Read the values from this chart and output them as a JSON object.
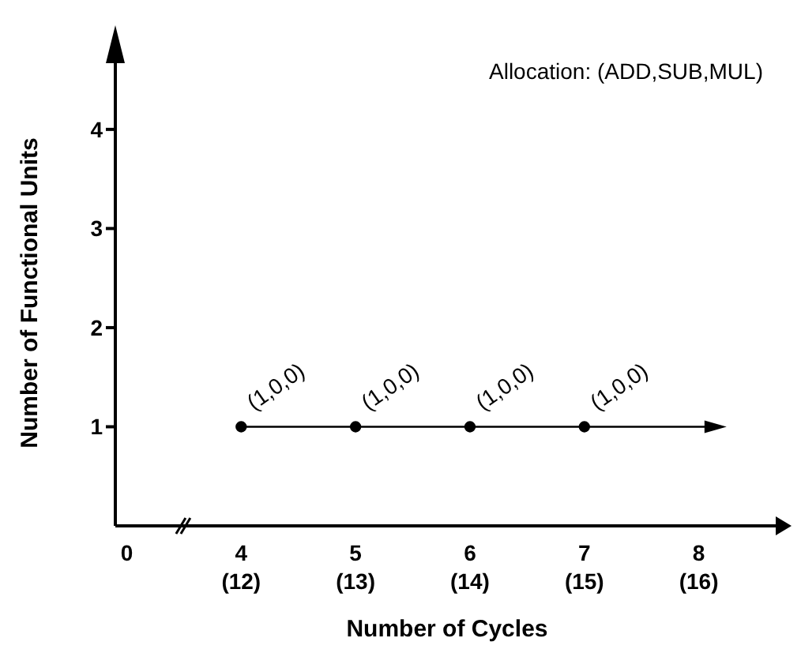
{
  "chart_data": {
    "type": "line",
    "xlabel": "Number of Cycles",
    "ylabel": "Number of Functional Units",
    "annotations": [
      "Allocation:  (ADD,SUB,MUL)"
    ],
    "categories": [
      "0",
      "4 (12)",
      "5 (13)",
      "6 (14)",
      "7 (15)",
      "8 (16)"
    ],
    "series": [
      {
        "color": "#000000",
        "values": [
          null,
          1,
          1,
          1,
          1,
          null
        ],
        "value_labels": [
          null,
          "(1,0,0)",
          "(1,0,0)",
          "(1,0,0)",
          "(1,0,0)",
          null
        ]
      }
    ],
    "ylim": [
      0,
      4.7
    ],
    "yticks": [
      1,
      2,
      3,
      4
    ],
    "marker": "circle",
    "line_style": "solid",
    "grid": false,
    "legend": false
  }
}
